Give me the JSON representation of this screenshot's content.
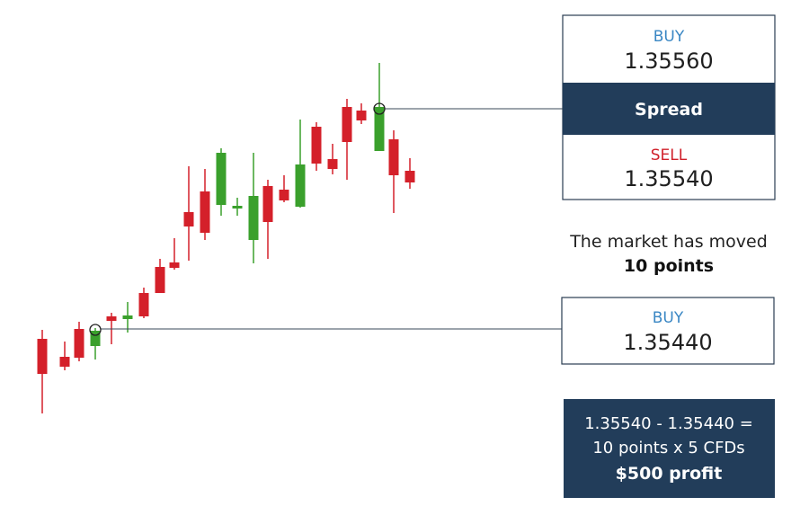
{
  "top_quote": {
    "buy_label": "BUY",
    "buy_price": "1.35560",
    "spread_label": "Spread",
    "sell_label": "SELL",
    "sell_price": "1.35540"
  },
  "message": {
    "line1": "The market has moved",
    "line2": "10 points"
  },
  "entry_quote": {
    "buy_label": "BUY",
    "buy_price": "1.35440"
  },
  "calculation": {
    "lines": [
      "1.35540 - 1.35440 =",
      "10 points x 5 CFDs",
      "$500 profit"
    ]
  }
}
